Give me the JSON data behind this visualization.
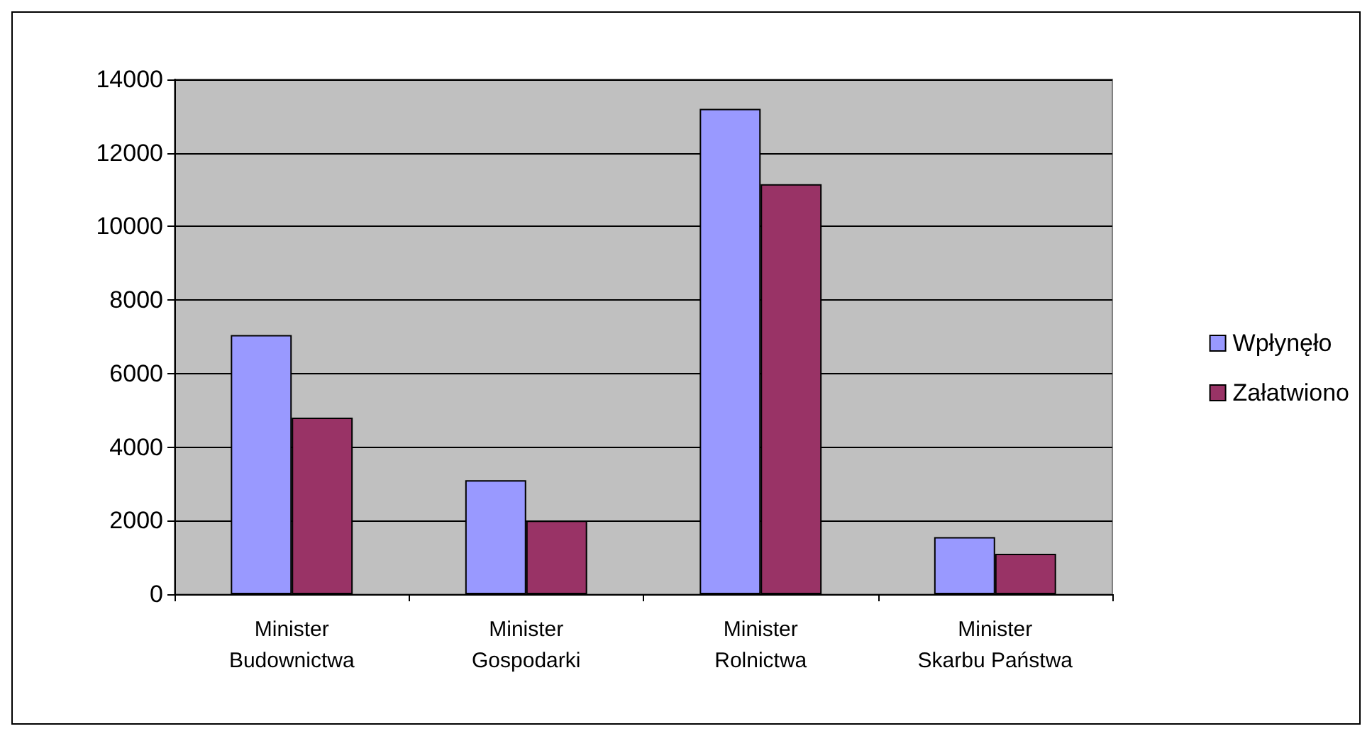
{
  "chart_data": {
    "type": "bar",
    "categories": [
      "Minister\nBudownictwa",
      "Minister\nGospodarki",
      "Minister\nRolnictwa",
      "Minister\nSkarbu Państwa"
    ],
    "series": [
      {
        "name": "Wpłynęło",
        "color": "#9999ff",
        "values": [
          7050,
          3100,
          13200,
          1550
        ]
      },
      {
        "name": "Załatwiono",
        "color": "#993366",
        "values": [
          4800,
          2000,
          11150,
          1100
        ]
      }
    ],
    "ylim": [
      0,
      14000
    ],
    "yticks": [
      0,
      2000,
      4000,
      6000,
      8000,
      10000,
      12000,
      14000
    ],
    "grid": "y",
    "legend": "right"
  }
}
